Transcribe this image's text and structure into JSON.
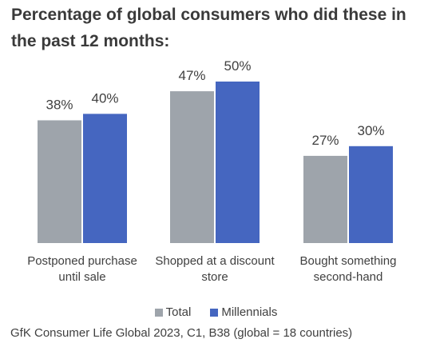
{
  "chart_data": {
    "type": "bar",
    "title": "Percentage of global consumers who did these in the past 12 months:",
    "categories": [
      "Postponed purchase until sale",
      "Shopped at a discount store",
      "Bought something second-hand"
    ],
    "category_lines": [
      [
        "Postponed purchase",
        "until sale"
      ],
      [
        "Shopped at a discount",
        "store"
      ],
      [
        "Bought something",
        "second-hand"
      ]
    ],
    "series": [
      {
        "name": "Total",
        "values": [
          38,
          47,
          27
        ],
        "labels": [
          "38%",
          "47%",
          "27%"
        ],
        "color": "#9ea4ab"
      },
      {
        "name": "Millennials",
        "values": [
          40,
          50,
          30
        ],
        "labels": [
          "40%",
          "50%",
          "30%"
        ],
        "color": "#4566c0"
      }
    ],
    "ylim": [
      0,
      50
    ],
    "grid": false,
    "legend_position": "bottom",
    "source": "GfK Consumer Life Global 2023, C1, B38 (global = 18 countries)"
  }
}
